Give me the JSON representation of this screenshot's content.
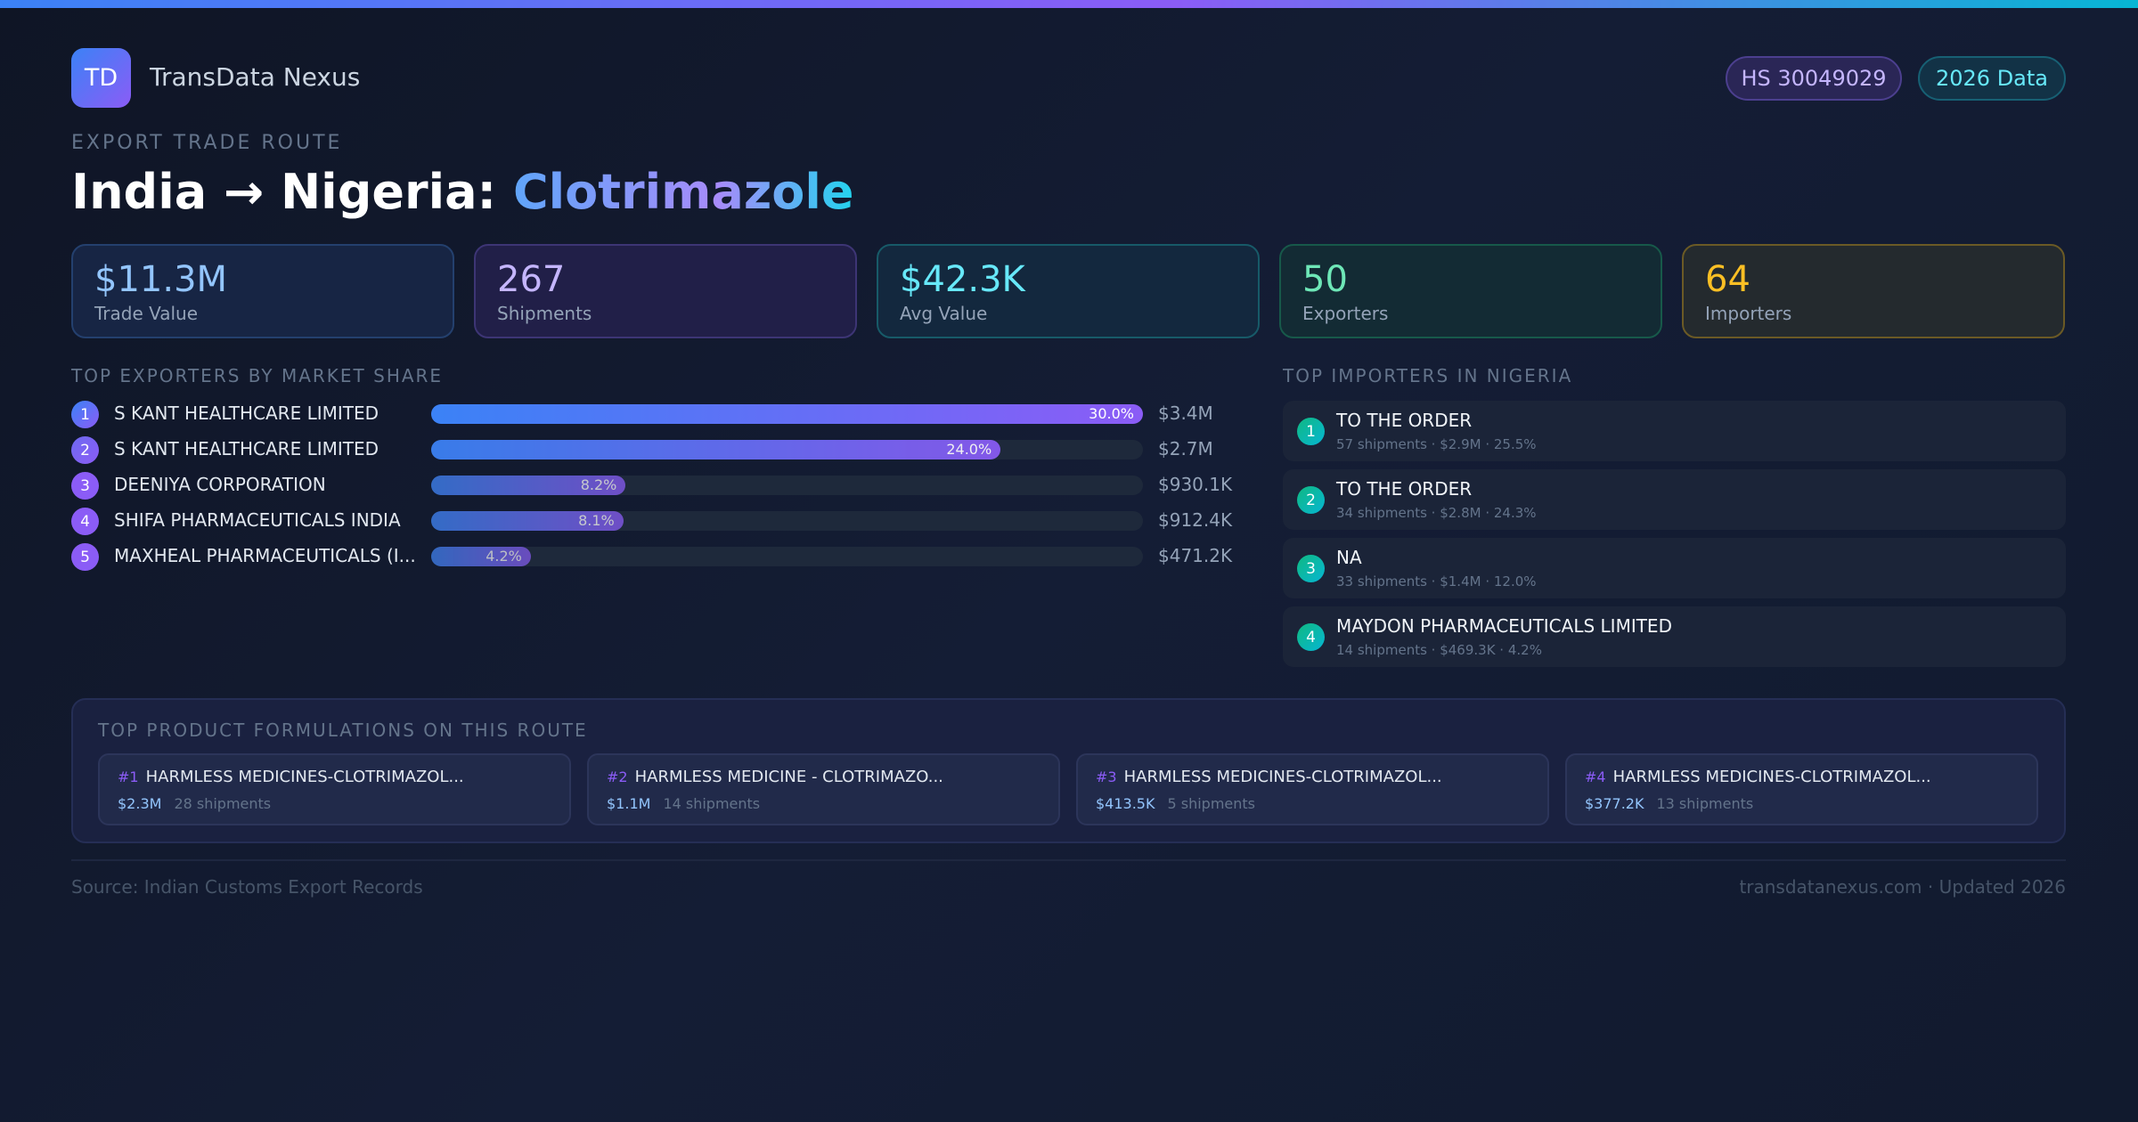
{
  "brand": {
    "logo": "TD",
    "name": "TransData Nexus"
  },
  "badges": {
    "hs": "HS 30049029",
    "year": "2026 Data"
  },
  "eyebrow": "EXPORT TRADE ROUTE",
  "title": {
    "route": "India → Nigeria: ",
    "product": "Clotrimazole"
  },
  "stats": [
    {
      "value": "$11.3M",
      "label": "Trade Value",
      "color": "#93c5fd"
    },
    {
      "value": "267",
      "label": "Shipments",
      "color": "#c4b5fd"
    },
    {
      "value": "$42.3K",
      "label": "Avg Value",
      "color": "#67e8f9"
    },
    {
      "value": "50",
      "label": "Exporters",
      "color": "#6ee7b7"
    },
    {
      "value": "64",
      "label": "Importers",
      "color": "#fbbf24"
    }
  ],
  "exporters_heading": "TOP EXPORTERS BY MARKET SHARE",
  "exporters": [
    {
      "rank": "1",
      "name": "S KANT HEALTHCARE LIMITED",
      "share": 30.0,
      "share_label": "30.0%",
      "value": "$3.4M"
    },
    {
      "rank": "2",
      "name": "S KANT HEALTHCARE LIMITED",
      "share": 24.0,
      "share_label": "24.0%",
      "value": "$2.7M"
    },
    {
      "rank": "3",
      "name": "DEENIYA CORPORATION",
      "share": 8.2,
      "share_label": "8.2%",
      "value": "$930.1K"
    },
    {
      "rank": "4",
      "name": "SHIFA PHARMACEUTICALS INDIA",
      "share": 8.1,
      "share_label": "8.1%",
      "value": "$912.4K"
    },
    {
      "rank": "5",
      "name": "MAXHEAL PHARMACEUTICALS (I...",
      "share": 4.2,
      "share_label": "4.2%",
      "value": "$471.2K"
    }
  ],
  "importers_heading": "TOP IMPORTERS IN NIGERIA",
  "importers": [
    {
      "rank": "1",
      "name": "TO THE ORDER",
      "detail": "57 shipments · $2.9M · 25.5%"
    },
    {
      "rank": "2",
      "name": "TO THE ORDER",
      "detail": "34 shipments · $2.8M · 24.3%"
    },
    {
      "rank": "3",
      "name": "NA",
      "detail": "33 shipments · $1.4M · 12.0%"
    },
    {
      "rank": "4",
      "name": "MAYDON PHARMACEUTICALS LIMITED",
      "detail": "14 shipments · $469.3K · 4.2%"
    }
  ],
  "formulations_heading": "TOP PRODUCT FORMULATIONS ON THIS ROUTE",
  "formulations": [
    {
      "rank": "#1",
      "name": "HARMLESS MEDICINES-CLOTRIMAZOL...",
      "value": "$2.3M",
      "shipments": "28 shipments"
    },
    {
      "rank": "#2",
      "name": "HARMLESS MEDICINE - CLOTRIMAZO...",
      "value": "$1.1M",
      "shipments": "14 shipments"
    },
    {
      "rank": "#3",
      "name": "HARMLESS MEDICINES-CLOTRIMAZOL...",
      "value": "$413.5K",
      "shipments": "5 shipments"
    },
    {
      "rank": "#4",
      "name": "HARMLESS MEDICINES-CLOTRIMAZOL...",
      "value": "$377.2K",
      "shipments": "13 shipments"
    }
  ],
  "footer": {
    "source": "Source: Indian Customs Export Records",
    "site": "transdatanexus.com · Updated 2026"
  }
}
